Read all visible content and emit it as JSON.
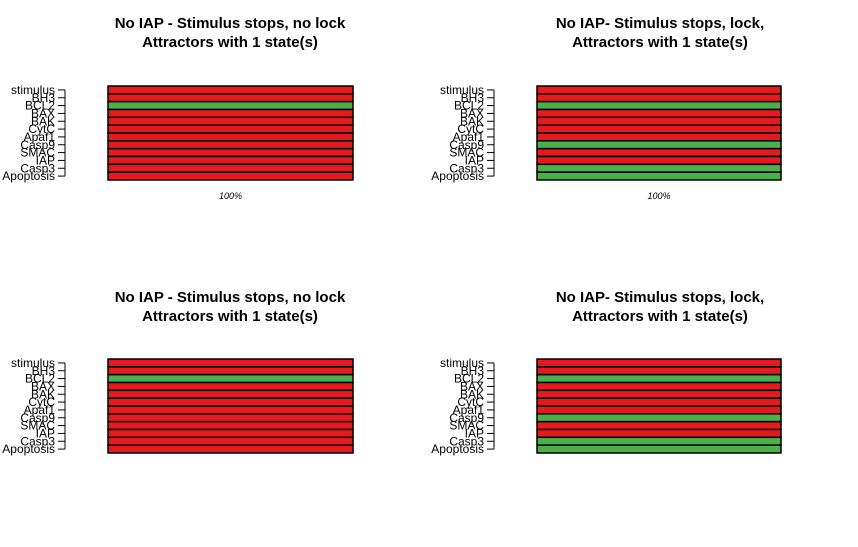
{
  "chart_data": [
    {
      "type": "heatmap",
      "title": "No IAP - Stimulus stops, no lock",
      "subtitle": "Attractors with 1 state(s)",
      "genes": [
        "stimulus",
        "BH3",
        "BCL2",
        "BAX",
        "BAK",
        "CytC",
        "Apaf1",
        "Casp9",
        "SMAC",
        "IAP",
        "Casp3",
        "Apoptosis"
      ],
      "states": [
        [
          0,
          0,
          1,
          0,
          0,
          0,
          0,
          0,
          0,
          0,
          0,
          0
        ]
      ],
      "column_labels": [
        "100%"
      ],
      "colors": {
        "active": "#4daf4a",
        "inactive": "#e41a1c"
      }
    },
    {
      "type": "heatmap",
      "title": "No IAP- Stimulus stops, lock,",
      "subtitle": "Attractors with 1 state(s)",
      "genes": [
        "stimulus",
        "BH3",
        "BCL2",
        "BAX",
        "BAK",
        "CytC",
        "Apaf1",
        "Casp9",
        "SMAC",
        "IAP",
        "Casp3",
        "Apoptosis"
      ],
      "states": [
        [
          0,
          0,
          1,
          0,
          0,
          0,
          0,
          1,
          0,
          0,
          1,
          1
        ]
      ],
      "column_labels": [
        "100%"
      ],
      "colors": {
        "active": "#4daf4a",
        "inactive": "#e41a1c"
      }
    },
    {
      "type": "heatmap",
      "title": "No IAP - Stimulus stops, no lock",
      "subtitle": "Attractors with 1 state(s)",
      "genes": [
        "stimulus",
        "BH3",
        "BCL2",
        "BAX",
        "BAK",
        "CytC",
        "Apaf1",
        "Casp9",
        "SMAC",
        "IAP",
        "Casp3",
        "Apoptosis"
      ],
      "states": [
        [
          0,
          0,
          1,
          0,
          0,
          0,
          0,
          0,
          0,
          0,
          0,
          0
        ]
      ],
      "column_labels": [],
      "colors": {
        "active": "#4daf4a",
        "inactive": "#e41a1c"
      }
    },
    {
      "type": "heatmap",
      "title": "No IAP- Stimulus stops, lock,",
      "subtitle": "Attractors with 1 state(s)",
      "genes": [
        "stimulus",
        "BH3",
        "BCL2",
        "BAX",
        "BAK",
        "CytC",
        "Apaf1",
        "Casp9",
        "SMAC",
        "IAP",
        "Casp3",
        "Apoptosis"
      ],
      "states": [
        [
          0,
          0,
          1,
          0,
          0,
          0,
          0,
          1,
          0,
          0,
          1,
          1
        ]
      ],
      "column_labels": [],
      "colors": {
        "active": "#4daf4a",
        "inactive": "#e41a1c"
      }
    }
  ]
}
